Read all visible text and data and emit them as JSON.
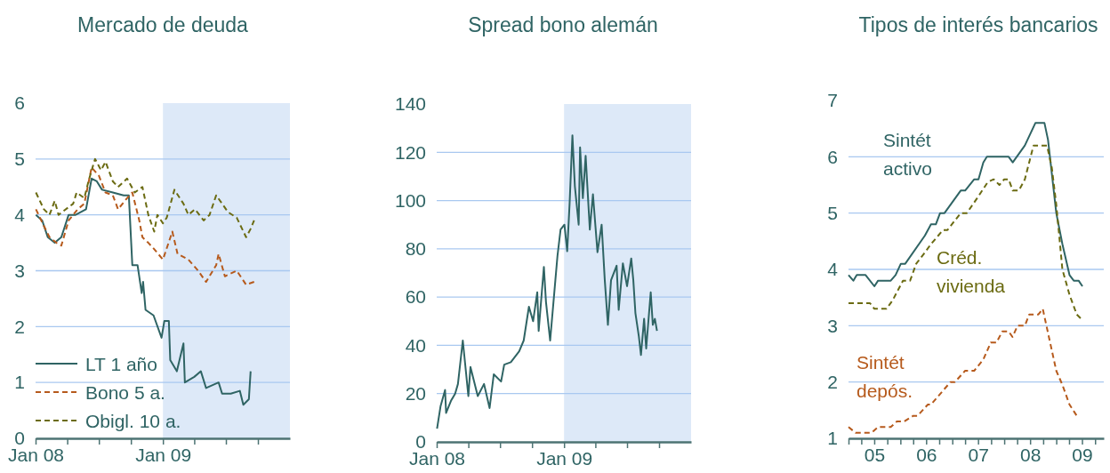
{
  "chart_data": [
    {
      "type": "line",
      "title": "Mercado de deuda",
      "xlim": [
        "2008-01-01",
        "2010-01-01"
      ],
      "ylim": [
        0,
        6
      ],
      "yticks": [
        0,
        1,
        2,
        3,
        4,
        5,
        6
      ],
      "xticks": [
        {
          "value": "2008-01-01",
          "label": "Jan 08"
        },
        {
          "value": "2008-04-01",
          "label": null
        },
        {
          "value": "2008-07-01",
          "label": null
        },
        {
          "value": "2008-10-01",
          "label": null
        },
        {
          "value": "2009-01-01",
          "label": "Jan 09"
        },
        {
          "value": "2009-04-01",
          "label": null
        },
        {
          "value": "2009-07-01",
          "label": null
        },
        {
          "value": "2009-10-01",
          "label": null
        }
      ],
      "grid": "y",
      "legend": "bottom left",
      "bands": [
        {
          "axis": "x",
          "from": "2009-01-01",
          "to": "2010-01-01",
          "color": "#dde9f8"
        }
      ],
      "series": [
        {
          "name": "LT 1 año",
          "color": "#2f6464",
          "line_style": "solid",
          "x": [
            "2008-01-02",
            "2008-01-20",
            "2008-02-05",
            "2008-02-25",
            "2008-03-15",
            "2008-04-05",
            "2008-04-25",
            "2008-05-25",
            "2008-06-10",
            "2008-06-25",
            "2008-07-10",
            "2008-08-10",
            "2008-09-10",
            "2008-09-25",
            "2008-10-05",
            "2008-10-20",
            "2008-11-01",
            "2008-11-05",
            "2008-11-12",
            "2008-12-05",
            "2008-12-28",
            "2009-01-05",
            "2009-01-18",
            "2009-01-22",
            "2009-02-10",
            "2009-03-01",
            "2009-03-05",
            "2009-04-01",
            "2009-04-20",
            "2009-05-05",
            "2009-06-10",
            "2009-06-20",
            "2009-07-15",
            "2009-08-10",
            "2009-08-20",
            "2009-09-05",
            "2009-09-10"
          ],
          "values": [
            4.0,
            3.9,
            3.6,
            3.5,
            3.6,
            4.0,
            4.0,
            4.1,
            4.65,
            4.6,
            4.45,
            4.4,
            4.35,
            4.35,
            3.1,
            3.1,
            2.6,
            2.8,
            2.3,
            2.2,
            1.8,
            2.1,
            2.1,
            1.4,
            1.2,
            1.7,
            1.0,
            1.1,
            1.2,
            0.9,
            1.0,
            0.8,
            0.8,
            0.85,
            0.6,
            0.7,
            1.2
          ]
        },
        {
          "name": "Bono 5 a.",
          "color": "#b65a1c",
          "line_style": "dashed",
          "x": [
            "2008-01-02",
            "2008-01-25",
            "2008-02-10",
            "2008-03-01",
            "2008-03-15",
            "2008-04-05",
            "2008-05-01",
            "2008-05-20",
            "2008-06-10",
            "2008-07-01",
            "2008-07-20",
            "2008-08-10",
            "2008-08-25",
            "2008-09-20",
            "2008-10-05",
            "2008-10-25",
            "2008-11-03",
            "2008-11-20",
            "2008-12-05",
            "2009-01-01",
            "2009-01-28",
            "2009-02-12",
            "2009-03-15",
            "2009-04-12",
            "2009-05-05",
            "2009-06-03",
            "2009-06-10",
            "2009-06-28",
            "2009-08-01",
            "2009-08-28",
            "2009-09-20"
          ],
          "values": [
            4.1,
            3.8,
            3.6,
            3.5,
            3.45,
            3.9,
            4.1,
            4.2,
            4.85,
            4.7,
            4.4,
            4.35,
            4.1,
            4.3,
            4.4,
            3.9,
            3.6,
            3.5,
            3.4,
            3.2,
            3.7,
            3.3,
            3.2,
            3.0,
            2.8,
            3.1,
            3.3,
            2.9,
            3.0,
            2.75,
            2.8
          ]
        },
        {
          "name": "Obigl. 10 a.",
          "color": "#6b6b12",
          "line_style": "dashed",
          "x": [
            "2008-01-02",
            "2008-01-25",
            "2008-02-10",
            "2008-02-25",
            "2008-03-07",
            "2008-04-18",
            "2008-04-28",
            "2008-05-20",
            "2008-06-01",
            "2008-06-15",
            "2008-06-20",
            "2008-07-07",
            "2008-07-20",
            "2008-08-10",
            "2008-08-25",
            "2008-09-20",
            "2008-10-12",
            "2008-11-03",
            "2008-11-20",
            "2008-12-07",
            "2008-12-16",
            "2009-01-01",
            "2009-01-12",
            "2009-02-03",
            "2009-03-01",
            "2009-03-15",
            "2009-04-03",
            "2009-04-28",
            "2009-05-15",
            "2009-06-03",
            "2009-07-07",
            "2009-08-01",
            "2009-08-28",
            "2009-09-10",
            "2009-09-20"
          ],
          "values": [
            4.4,
            4.1,
            4.0,
            4.25,
            4.0,
            4.2,
            4.4,
            4.3,
            4.6,
            4.9,
            5.0,
            4.8,
            4.95,
            4.6,
            4.5,
            4.65,
            4.4,
            4.5,
            4.0,
            3.7,
            4.0,
            3.85,
            3.95,
            4.45,
            4.2,
            4.0,
            4.1,
            3.9,
            4.0,
            4.35,
            4.05,
            3.95,
            3.6,
            3.75,
            3.9
          ]
        }
      ]
    },
    {
      "type": "line",
      "title": "Spread bono alemán",
      "xlim": [
        "2008-01-01",
        "2010-01-01"
      ],
      "ylim": [
        0,
        140
      ],
      "yticks": [
        0,
        20,
        40,
        60,
        80,
        100,
        120,
        140
      ],
      "xticks": [
        {
          "value": "2008-01-01",
          "label": "Jan 08"
        },
        {
          "value": "2008-04-01",
          "label": null
        },
        {
          "value": "2008-07-01",
          "label": null
        },
        {
          "value": "2008-10-01",
          "label": null
        },
        {
          "value": "2009-01-01",
          "label": "Jan 09"
        },
        {
          "value": "2009-04-01",
          "label": null
        },
        {
          "value": "2009-07-01",
          "label": null
        },
        {
          "value": "2009-10-01",
          "label": null
        }
      ],
      "grid": "y",
      "bands": [
        {
          "axis": "x",
          "from": "2009-01-01",
          "to": "2010-01-01",
          "color": "#dde9f8"
        }
      ],
      "series": [
        {
          "color": "#2f6464",
          "line_style": "solid",
          "x": [
            "2008-01-02",
            "2008-01-12",
            "2008-01-25",
            "2008-01-28",
            "2008-02-11",
            "2008-02-23",
            "2008-03-02",
            "2008-03-16",
            "2008-04-01",
            "2008-04-07",
            "2008-04-28",
            "2008-05-16",
            "2008-06-01",
            "2008-06-13",
            "2008-07-04",
            "2008-07-13",
            "2008-08-01",
            "2008-08-25",
            "2008-09-07",
            "2008-09-22",
            "2008-10-04",
            "2008-10-16",
            "2008-10-20",
            "2008-11-04",
            "2008-11-10",
            "2008-11-22",
            "2008-12-07",
            "2008-12-13",
            "2008-12-22",
            "2009-01-02",
            "2009-01-10",
            "2009-01-17",
            "2009-01-25",
            "2009-02-01",
            "2009-02-12",
            "2009-02-16",
            "2009-02-24",
            "2009-03-04",
            "2009-03-16",
            "2009-03-25",
            "2009-04-07",
            "2009-04-19",
            "2009-04-28",
            "2009-05-07",
            "2009-05-16",
            "2009-06-01",
            "2009-06-07",
            "2009-06-19",
            "2009-07-01",
            "2009-07-13",
            "2009-07-19",
            "2009-07-25",
            "2009-08-04",
            "2009-08-10",
            "2009-08-19",
            "2009-08-25",
            "2009-09-07",
            "2009-09-13",
            "2009-09-19",
            "2009-09-25"
          ],
          "values": [
            5.5,
            14.7,
            21.5,
            12,
            17,
            20,
            24,
            42,
            19,
            31,
            19,
            24,
            14,
            28,
            25,
            32,
            33,
            37.5,
            42,
            56,
            50,
            62,
            46,
            72.5,
            58,
            42,
            67,
            77,
            88,
            90,
            79,
            99,
            127,
            106,
            90,
            122,
            101,
            118.5,
            88,
            102.6,
            78.6,
            90,
            67,
            48.5,
            67,
            73,
            54.7,
            74,
            64.5,
            76,
            67,
            53.4,
            43.6,
            36,
            51,
            38.7,
            62,
            48.5,
            51,
            46
          ]
        }
      ]
    },
    {
      "type": "line",
      "title": "Tipos de interés bancarios",
      "xlim": [
        "2005-01-01",
        "2009-12-01"
      ],
      "ylim": [
        1,
        7
      ],
      "yticks": [
        1,
        2,
        3,
        4,
        5,
        6,
        7
      ],
      "xticks": [
        {
          "value": "2005-01-01",
          "label": null
        },
        {
          "value": "2005-04-01",
          "label": null
        },
        {
          "value": "2005-07-01",
          "label": "05"
        },
        {
          "value": "2005-10-01",
          "label": null
        },
        {
          "value": "2006-01-01",
          "label": null
        },
        {
          "value": "2006-04-01",
          "label": null
        },
        {
          "value": "2006-07-01",
          "label": "06"
        },
        {
          "value": "2006-10-01",
          "label": null
        },
        {
          "value": "2007-01-01",
          "label": null
        },
        {
          "value": "2007-04-01",
          "label": null
        },
        {
          "value": "2007-07-01",
          "label": "07"
        },
        {
          "value": "2007-10-01",
          "label": null
        },
        {
          "value": "2008-01-01",
          "label": null
        },
        {
          "value": "2008-04-01",
          "label": null
        },
        {
          "value": "2008-07-01",
          "label": "08"
        },
        {
          "value": "2008-10-01",
          "label": null
        },
        {
          "value": "2009-01-01",
          "label": null
        },
        {
          "value": "2009-04-01",
          "label": null
        },
        {
          "value": "2009-07-01",
          "label": "09"
        },
        {
          "value": "2009-10-01",
          "label": null
        }
      ],
      "grid": "y",
      "series": [
        {
          "name": "Sintét activo",
          "color": "#2f6464",
          "line_style": "solid",
          "x": [
            "2005-01-01",
            "2005-02-04",
            "2005-02-28",
            "2005-05-01",
            "2005-07-02",
            "2005-07-28",
            "2005-10-25",
            "2005-11-28",
            "2006-01-04",
            "2006-02-04",
            "2006-06-22",
            "2006-08-04",
            "2006-09-07",
            "2006-10-07",
            "2006-11-07",
            "2007-03-01",
            "2007-04-01",
            "2007-06-04",
            "2007-07-04",
            "2007-08-07",
            "2007-09-01",
            "2008-02-01",
            "2008-03-01",
            "2008-05-25",
            "2008-08-07",
            "2008-10-10",
            "2008-11-04",
            "2009-01-01",
            "2009-02-13",
            "2009-04-04",
            "2009-05-04",
            "2009-06-07",
            "2009-07-04"
          ],
          "values": [
            3.9,
            3.8,
            3.9,
            3.9,
            3.7,
            3.8,
            3.8,
            3.9,
            4.1,
            4.1,
            4.6,
            4.8,
            4.8,
            5.0,
            5.0,
            5.4,
            5.4,
            5.6,
            5.6,
            5.9,
            6.0,
            6.0,
            5.9,
            6.2,
            6.6,
            6.6,
            6.3,
            5.0,
            4.45,
            3.9,
            3.8,
            3.8,
            3.7
          ]
        },
        {
          "name": "Créd. vivienda",
          "color": "#6b6b12",
          "line_style": "dashed",
          "x": [
            "2005-01-01",
            "2005-06-01",
            "2005-07-02",
            "2005-09-25",
            "2005-11-07",
            "2006-01-19",
            "2006-03-10",
            "2006-04-22",
            "2006-06-22",
            "2006-08-04",
            "2006-10-28",
            "2006-11-28",
            "2007-03-01",
            "2007-04-13",
            "2007-07-04",
            "2007-09-07",
            "2007-10-19",
            "2007-11-28",
            "2008-01-01",
            "2008-02-01",
            "2008-03-01",
            "2008-04-13",
            "2008-05-25",
            "2008-07-25",
            "2008-10-28",
            "2008-12-01",
            "2009-01-01",
            "2009-02-13",
            "2009-04-04",
            "2009-05-25",
            "2009-07-04"
          ],
          "values": [
            3.4,
            3.4,
            3.3,
            3.3,
            3.45,
            3.8,
            3.8,
            4.1,
            4.3,
            4.45,
            4.7,
            4.7,
            5.0,
            5.0,
            5.3,
            5.55,
            5.6,
            5.5,
            5.6,
            5.6,
            5.4,
            5.4,
            5.6,
            6.2,
            6.2,
            5.8,
            5.15,
            4.0,
            3.55,
            3.2,
            3.1
          ]
        },
        {
          "name": "Sintét depós.",
          "color": "#b65a1c",
          "line_style": "dashed",
          "x": [
            "2005-01-01",
            "2005-02-19",
            "2005-06-13",
            "2005-07-28",
            "2005-10-25",
            "2005-12-07",
            "2006-01-28",
            "2006-04-01",
            "2006-05-01",
            "2006-07-13",
            "2006-08-04",
            "2006-12-19",
            "2007-01-19",
            "2007-04-01",
            "2007-06-04",
            "2007-08-07",
            "2007-09-28",
            "2007-11-07",
            "2007-12-19",
            "2008-02-01",
            "2008-02-28",
            "2008-04-04",
            "2008-05-25",
            "2008-06-25",
            "2008-08-28",
            "2008-09-28",
            "2008-11-10",
            "2009-01-01",
            "2009-02-13",
            "2009-04-04",
            "2009-05-25"
          ],
          "values": [
            1.2,
            1.1,
            1.1,
            1.2,
            1.2,
            1.3,
            1.3,
            1.4,
            1.4,
            1.6,
            1.6,
            2.0,
            2.0,
            2.2,
            2.2,
            2.4,
            2.7,
            2.7,
            2.9,
            2.9,
            2.8,
            3.0,
            3.0,
            3.2,
            3.2,
            3.3,
            2.8,
            2.2,
            1.95,
            1.6,
            1.4
          ]
        }
      ]
    }
  ]
}
